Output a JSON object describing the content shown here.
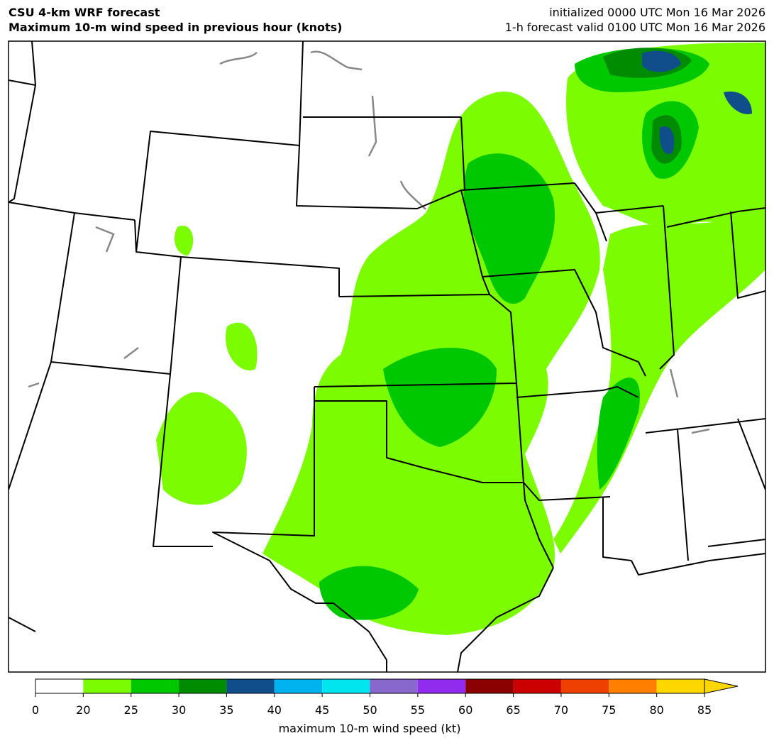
{
  "header": {
    "title": [
      "CSU 4-km WRF forecast",
      "Maximum 10-m wind speed in previous hour (knots)"
    ],
    "init": "initialized 0000 UTC Mon 16 Mar 2026",
    "valid": "1-h forecast valid 0100 UTC Mon 16 Mar 2026"
  },
  "colorbar": {
    "ticks": [
      0,
      20,
      25,
      30,
      35,
      40,
      45,
      50,
      55,
      60,
      65,
      70,
      75,
      80,
      85
    ],
    "colors": [
      "#ffffff",
      "#7cfc00",
      "#00c800",
      "#008b00",
      "#104e8b",
      "#00b2ee",
      "#00e5ee",
      "#8968cd",
      "#912cee",
      "#8b0000",
      "#cd0000",
      "#ee4000",
      "#ff7f00",
      "#ffd700"
    ],
    "label": "maximum 10-m wind speed (kt)"
  }
}
